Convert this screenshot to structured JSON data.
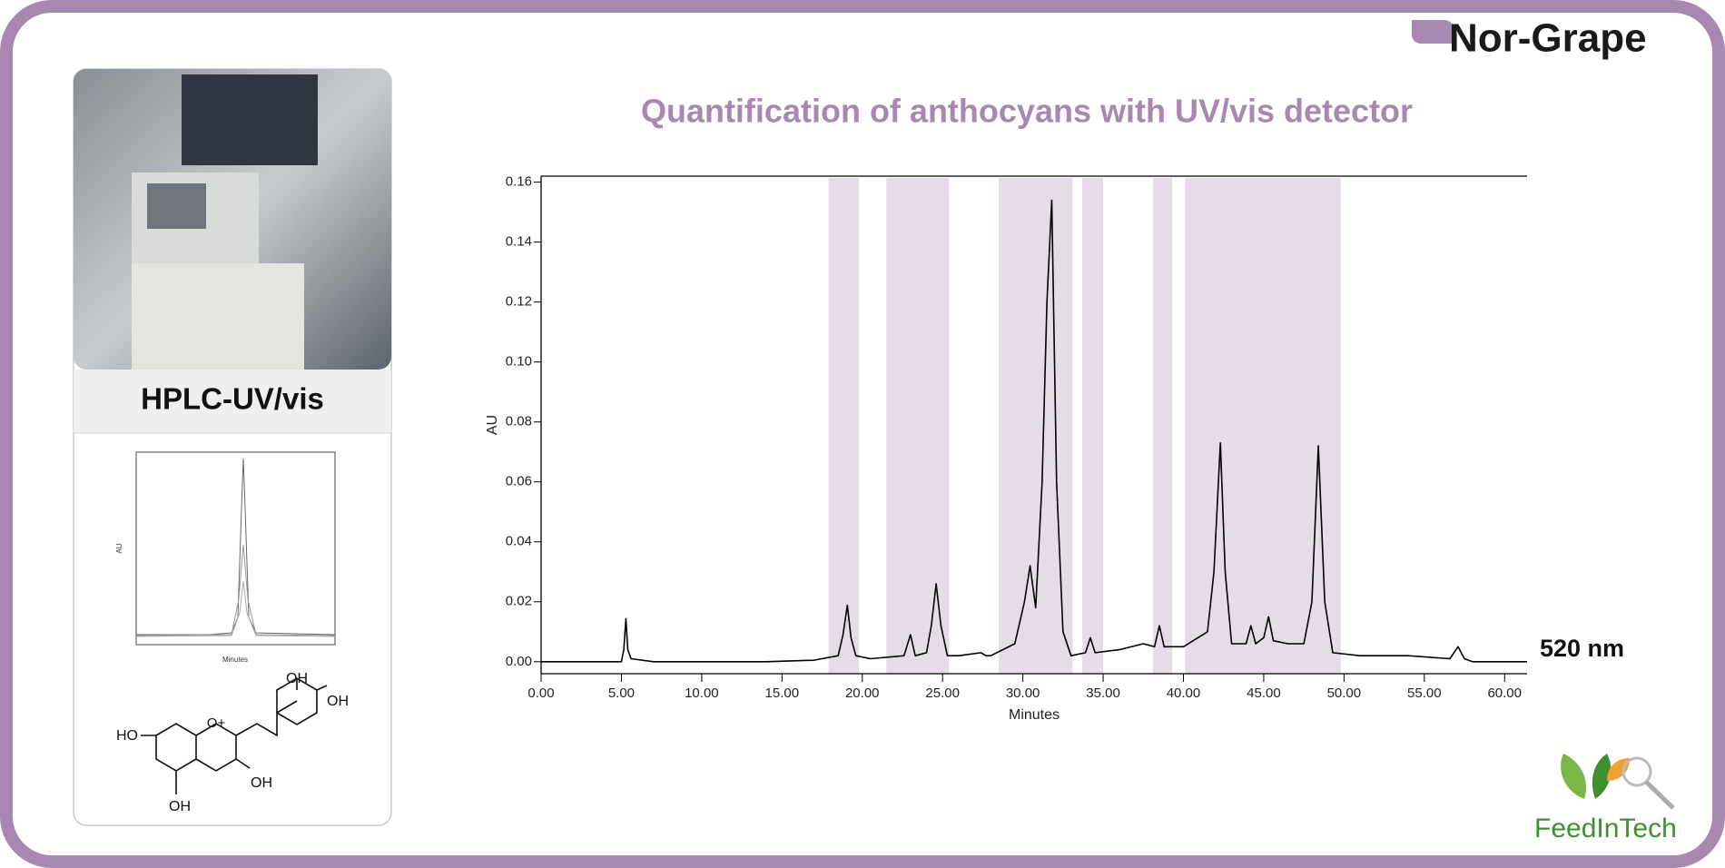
{
  "logo": "Nor-Grape",
  "footer_logo": "FeedInTech",
  "panel": {
    "label": "HPLC-UV/vis",
    "mini_chart": {
      "x_label": "Minutes",
      "y_label": "AU"
    },
    "molecule_labels": [
      "OH",
      "OH",
      "HO",
      "O+",
      "OH",
      "OH"
    ]
  },
  "chart_data": {
    "type": "line",
    "title": "Quantification of anthocyans with UV/vis detector",
    "x_label": "Minutes",
    "y_label": "AU",
    "annotation": "520 nm",
    "color": "#000000",
    "highlight_color": "#e6dce8",
    "highlight_ranges": [
      [
        17.9,
        19.8
      ],
      [
        21.5,
        25.4
      ],
      [
        28.5,
        33.1
      ],
      [
        33.7,
        35.0
      ],
      [
        38.1,
        39.3
      ],
      [
        40.1,
        49.8
      ]
    ],
    "xlim": [
      0,
      61.4
    ],
    "ylim": [
      -0.004,
      0.162
    ],
    "xticks": [
      {
        "value": 0,
        "label": "0.00"
      },
      {
        "value": 5,
        "label": "5.00"
      },
      {
        "value": 10,
        "label": "10.00"
      },
      {
        "value": 15,
        "label": "15.00"
      },
      {
        "value": 20,
        "label": "20.00"
      },
      {
        "value": 25,
        "label": "25.00"
      },
      {
        "value": 30,
        "label": "30.00"
      },
      {
        "value": 35,
        "label": "35.00"
      },
      {
        "value": 40,
        "label": "40.00"
      },
      {
        "value": 45,
        "label": "45.00"
      },
      {
        "value": 50,
        "label": "50.00"
      },
      {
        "value": 55,
        "label": "55.00"
      },
      {
        "value": 60,
        "label": "60.00"
      }
    ],
    "yticks": [
      {
        "value": 0,
        "label": "0.00"
      },
      {
        "value": 0.02,
        "label": "0.02"
      },
      {
        "value": 0.04,
        "label": "0.04"
      },
      {
        "value": 0.06,
        "label": "0.06"
      },
      {
        "value": 0.08,
        "label": "0.08"
      },
      {
        "value": 0.1,
        "label": "0.10"
      },
      {
        "value": 0.12,
        "label": "0.12"
      },
      {
        "value": 0.14,
        "label": "0.14"
      },
      {
        "value": 0.16,
        "label": "0.16"
      }
    ],
    "x": [
      0,
      5.0,
      5.15,
      5.28,
      5.4,
      5.6,
      7,
      14,
      17,
      18.5,
      18.8,
      19.07,
      19.3,
      19.6,
      20.5,
      22.6,
      23.0,
      23.3,
      24.0,
      24.3,
      24.6,
      24.9,
      25.3,
      26,
      27.4,
      27.7,
      28,
      29.5,
      30.1,
      30.45,
      30.8,
      31.2,
      31.5,
      31.8,
      32.1,
      32.5,
      33,
      33.9,
      34.2,
      34.5,
      36,
      37.5,
      38.2,
      38.5,
      38.8,
      40,
      41.5,
      41.9,
      42.3,
      42.6,
      43,
      43.9,
      44.2,
      44.5,
      45.0,
      45.3,
      45.6,
      46.5,
      47.5,
      48.0,
      48.4,
      48.8,
      49.3,
      51,
      54,
      56.6,
      57.1,
      57.5,
      58,
      61.4
    ],
    "values": [
      0,
      0,
      0.004,
      0.0143,
      0.004,
      0.001,
      0,
      0,
      0.0005,
      0.002,
      0.009,
      0.0188,
      0.008,
      0.002,
      0.001,
      0.002,
      0.009,
      0.002,
      0.003,
      0.012,
      0.026,
      0.012,
      0.002,
      0.002,
      0.003,
      0.002,
      0.002,
      0.006,
      0.02,
      0.032,
      0.018,
      0.06,
      0.12,
      0.154,
      0.06,
      0.01,
      0.002,
      0.003,
      0.008,
      0.003,
      0.004,
      0.006,
      0.005,
      0.012,
      0.005,
      0.005,
      0.01,
      0.03,
      0.073,
      0.03,
      0.006,
      0.006,
      0.012,
      0.006,
      0.008,
      0.015,
      0.007,
      0.006,
      0.006,
      0.02,
      0.072,
      0.02,
      0.003,
      0.002,
      0.002,
      0.001,
      0.005,
      0.001,
      0,
      0
    ]
  }
}
